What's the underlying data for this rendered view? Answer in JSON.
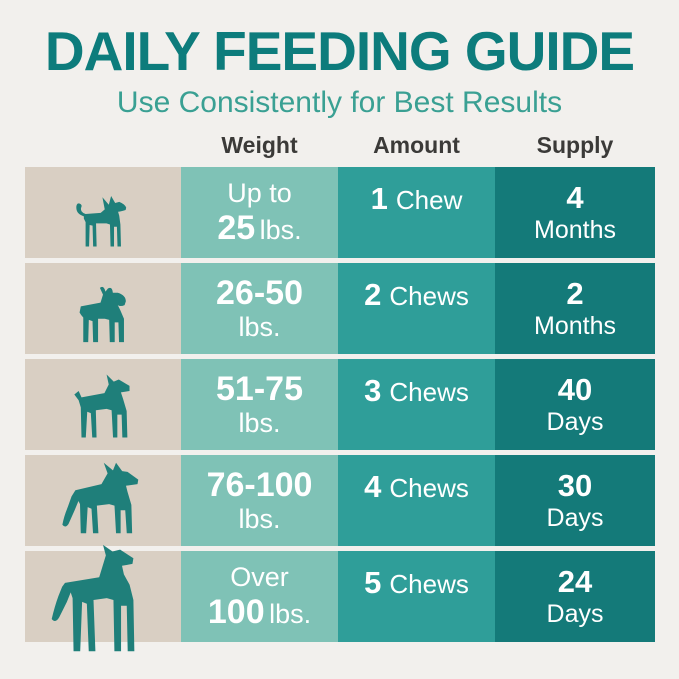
{
  "header": {
    "title": "DAILY FEEDING GUIDE",
    "subtitle": "Use Consistently for Best Results"
  },
  "table": {
    "column_headers": {
      "weight": "Weight",
      "amount": "Amount",
      "supply": "Supply"
    },
    "rows": [
      {
        "dog_icon": "chihuahua-silhouette",
        "weight_top_bold": "",
        "weight_top_regular": "Up to",
        "weight_bottom_bold": "25",
        "weight_bottom_regular": "lbs.",
        "amount_count": 1,
        "amount_unit": "Chew",
        "supply_value": "4",
        "supply_unit": "Months"
      },
      {
        "dog_icon": "french-bulldog-silhouette",
        "weight_top_bold": "26-50",
        "weight_top_regular": "",
        "weight_bottom_bold": "",
        "weight_bottom_regular": "lbs.",
        "amount_count": 2,
        "amount_unit": "Chews",
        "supply_value": "2",
        "supply_unit": "Months"
      },
      {
        "dog_icon": "boxer-silhouette",
        "weight_top_bold": "51-75",
        "weight_top_regular": "",
        "weight_bottom_bold": "",
        "weight_bottom_regular": "lbs.",
        "amount_count": 3,
        "amount_unit": "Chews",
        "supply_value": "40",
        "supply_unit": "Days"
      },
      {
        "dog_icon": "german-shepherd-silhouette",
        "weight_top_bold": "76-100",
        "weight_top_regular": "",
        "weight_bottom_bold": "",
        "weight_bottom_regular": "lbs.",
        "amount_count": 4,
        "amount_unit": "Chews",
        "supply_value": "30",
        "supply_unit": "Days"
      },
      {
        "dog_icon": "great-dane-silhouette",
        "weight_top_bold": "",
        "weight_top_regular": "Over",
        "weight_bottom_bold": "100",
        "weight_bottom_regular": "lbs.",
        "amount_count": 5,
        "amount_unit": "Chews",
        "supply_value": "24",
        "supply_unit": "Days"
      }
    ]
  },
  "colors": {
    "background": "#f2f0ed",
    "title_text": "#0d7c7c",
    "subtitle_text": "#3aa093",
    "header_text": "#3b3a38",
    "dog_cell_bg": "#d9cfc3",
    "dog_silhouette": "#1f7f7a",
    "weight_cell_bg": "#7fc2b6",
    "amount_cell_bg": "#2f9e99",
    "supply_cell_bg": "#147a79",
    "cell_text": "#ffffff",
    "chew_dot": "#dcefe9"
  }
}
